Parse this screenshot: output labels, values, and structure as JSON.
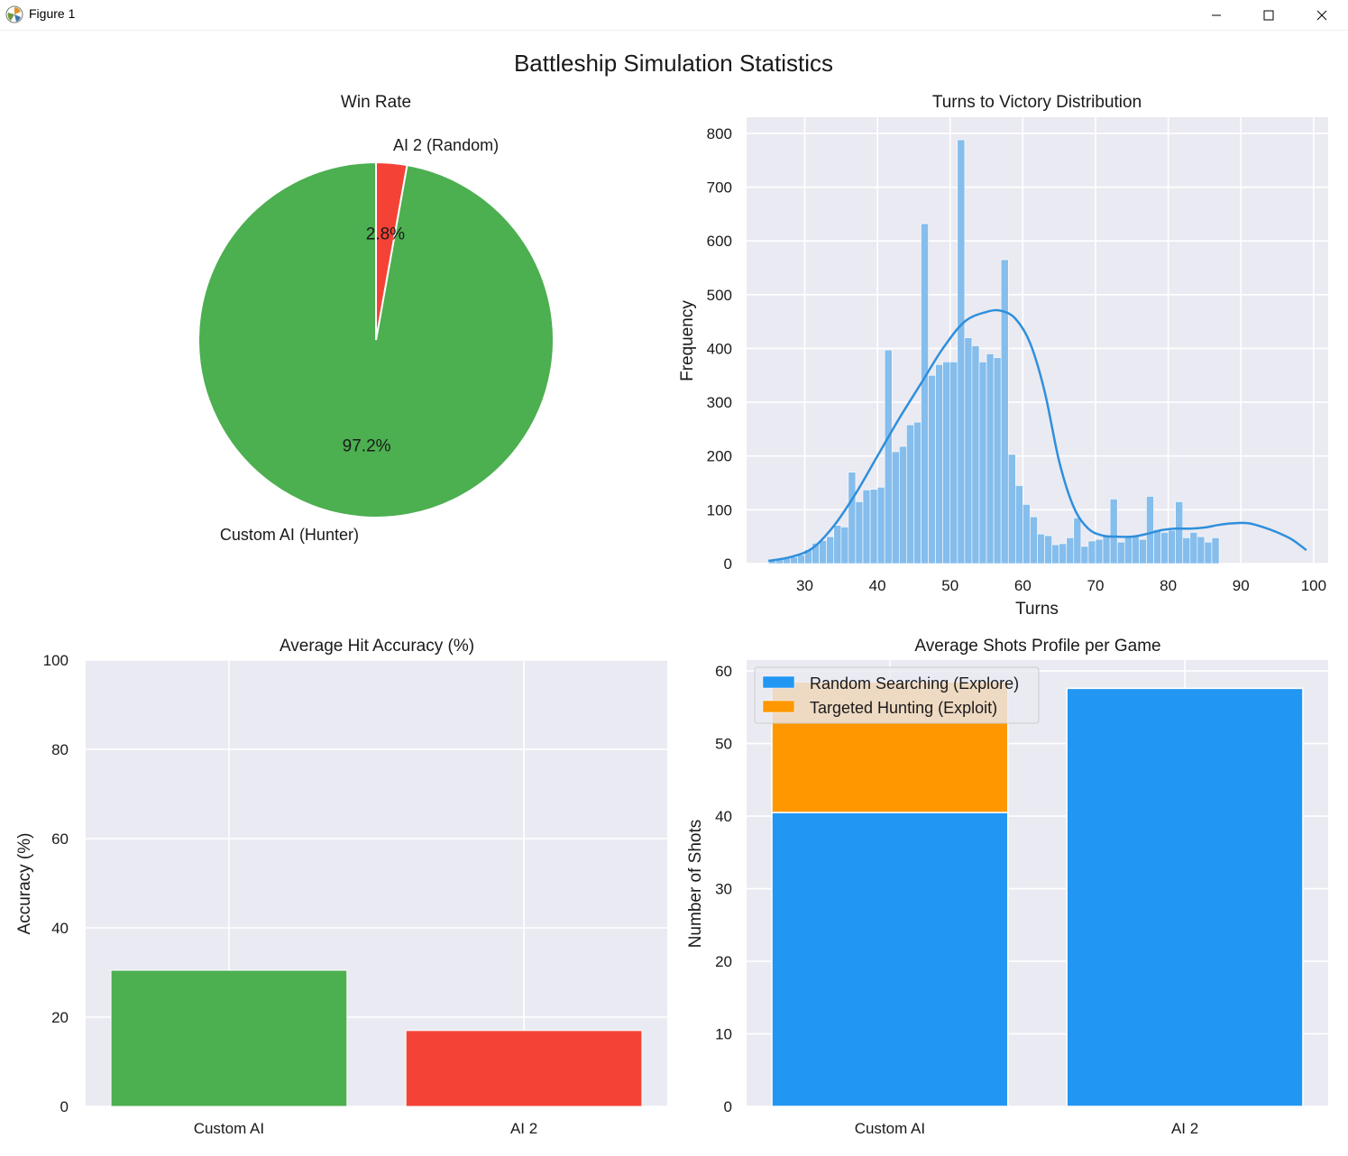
{
  "window": {
    "title": "Figure 1",
    "app_icon": "matplotlib-icon",
    "controls": [
      "minimize-icon",
      "maximize-icon",
      "close-icon"
    ]
  },
  "figure": {
    "suptitle": "Battleship Simulation Statistics",
    "style": "seaborn-darkgrid",
    "colors": {
      "green": "#4caf50",
      "red": "#f44336",
      "blue": "#2196f3",
      "orange": "#ff9800",
      "hist_blue": "#85bdec",
      "kde_blue": "#2f8fdc",
      "panel_bg": "#eaeaf2"
    }
  },
  "chart_data": [
    {
      "type": "pie",
      "title": "Win Rate",
      "labels": [
        "Custom AI (Hunter)",
        "AI 2 (Random)"
      ],
      "values": [
        97.2,
        2.8
      ],
      "autopct": [
        "97.2%",
        "2.8%"
      ],
      "colors": [
        "#4caf50",
        "#f44336"
      ],
      "startangle": 90
    },
    {
      "type": "bar",
      "subtype": "histogram-with-kde",
      "title": "Turns to Victory Distribution",
      "xlabel": "Turns",
      "ylabel": "Frequency",
      "xlim": [
        22,
        102
      ],
      "ylim": [
        0,
        830
      ],
      "xticks": [
        30,
        40,
        50,
        60,
        70,
        80,
        90,
        100
      ],
      "yticks": [
        0,
        100,
        200,
        300,
        400,
        500,
        600,
        700,
        800
      ],
      "bin_start": 25,
      "bin_width": 1,
      "values": [
        5,
        8,
        10,
        12,
        16,
        26,
        38,
        43,
        50,
        71,
        68,
        170,
        115,
        137,
        138,
        142,
        397,
        208,
        218,
        258,
        263,
        632,
        350,
        370,
        375,
        375,
        788,
        420,
        405,
        375,
        390,
        383,
        565,
        203,
        145,
        110,
        87,
        55,
        52,
        35,
        37,
        48,
        85,
        32,
        42,
        45,
        52,
        120,
        40,
        52,
        52,
        45,
        125,
        63,
        58,
        62,
        115,
        48,
        58,
        50,
        40,
        48
      ],
      "kde": {
        "x": [
          25,
          28,
          31,
          34,
          37,
          40,
          43,
          46,
          49,
          52,
          55,
          57,
          59,
          61,
          63,
          65,
          67,
          69,
          71,
          73,
          75,
          77,
          79,
          81,
          83,
          85,
          87,
          89,
          91,
          93,
          95,
          97,
          99
        ],
        "y": [
          5,
          12,
          28,
          70,
          130,
          200,
          270,
          335,
          400,
          450,
          468,
          470,
          455,
          410,
          320,
          190,
          105,
          65,
          52,
          50,
          50,
          55,
          62,
          65,
          65,
          67,
          72,
          75,
          75,
          68,
          58,
          45,
          25
        ]
      },
      "color": "#85bdec"
    },
    {
      "type": "bar",
      "title": "Average Hit Accuracy (%)",
      "categories": [
        "Custom AI",
        "AI 2"
      ],
      "values": [
        30.5,
        17.0
      ],
      "colors": [
        "#4caf50",
        "#f44336"
      ],
      "ylabel": "Accuracy (%)",
      "ylim": [
        0,
        100
      ],
      "yticks": [
        0,
        20,
        40,
        60,
        80,
        100
      ]
    },
    {
      "type": "bar",
      "subtype": "stacked",
      "title": "Average Shots Profile per Game",
      "categories": [
        "Custom AI",
        "AI 2"
      ],
      "series": [
        {
          "name": "Random Searching (Explore)",
          "values": [
            40.5,
            57.6
          ],
          "color": "#2196f3"
        },
        {
          "name": "Targeted Hunting (Exploit)",
          "values": [
            18.0,
            0
          ],
          "color": "#ff9800"
        }
      ],
      "ylabel": "Number of Shots",
      "ylim": [
        0,
        61.5
      ],
      "yticks": [
        0,
        10,
        20,
        30,
        40,
        50,
        60
      ],
      "legend": "top-left"
    }
  ]
}
